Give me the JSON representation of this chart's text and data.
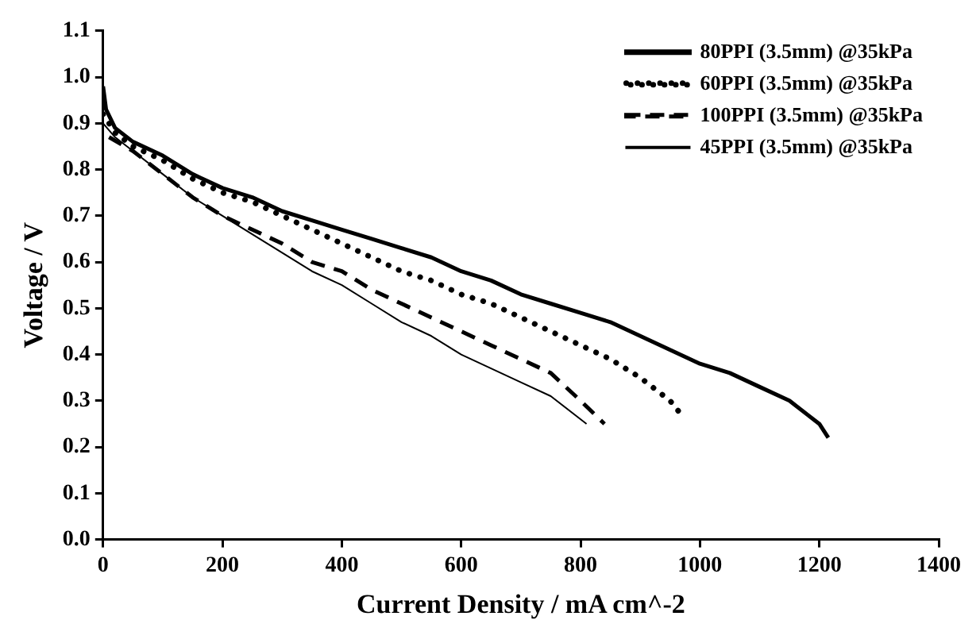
{
  "chart_data": {
    "type": "line",
    "xlabel": "Current Density / mA cm^-2",
    "ylabel": "Voltage / V",
    "xlim": [
      0,
      1400
    ],
    "xticks": [
      0,
      200,
      400,
      600,
      800,
      1000,
      1200,
      1400
    ],
    "ylim": [
      0,
      1.1
    ],
    "yticks": [
      {
        "value": 0,
        "label": "0.0"
      },
      0.1,
      0.2,
      0.3,
      0.4,
      0.5,
      0.6,
      0.7,
      0.8,
      0.9,
      {
        "value": 1,
        "label": "1.0"
      },
      1.1
    ],
    "grid": false,
    "legend": "top right",
    "marker": "none",
    "series": [
      {
        "name": "80PPI (3.5mm) @35kPa",
        "color": "#000000",
        "line_style": "solid",
        "x": [
          0,
          5,
          20,
          50,
          100,
          150,
          200,
          250,
          300,
          350,
          400,
          450,
          500,
          550,
          600,
          650,
          700,
          750,
          800,
          850,
          900,
          950,
          1000,
          1050,
          1100,
          1150,
          1200,
          1215
        ],
        "values": [
          0.98,
          0.93,
          0.89,
          0.86,
          0.83,
          0.79,
          0.76,
          0.74,
          0.71,
          0.69,
          0.67,
          0.65,
          0.63,
          0.61,
          0.58,
          0.56,
          0.53,
          0.51,
          0.49,
          0.47,
          0.44,
          0.41,
          0.38,
          0.36,
          0.33,
          0.3,
          0.25,
          0.22
        ]
      },
      {
        "name": "60PPI (3.5mm) @35kPa",
        "color": "#000000",
        "line_style": "dotted",
        "x": [
          0,
          20,
          50,
          100,
          150,
          200,
          250,
          300,
          350,
          400,
          450,
          500,
          550,
          600,
          650,
          700,
          750,
          800,
          850,
          900,
          950,
          975
        ],
        "values": [
          0.92,
          0.88,
          0.85,
          0.82,
          0.78,
          0.75,
          0.73,
          0.7,
          0.67,
          0.64,
          0.61,
          0.58,
          0.56,
          0.53,
          0.51,
          0.48,
          0.45,
          0.42,
          0.39,
          0.35,
          0.3,
          0.26
        ]
      },
      {
        "name": "100PPI (3.5mm) @35kPa",
        "color": "#000000",
        "line_style": "dashed",
        "x": [
          10,
          50,
          100,
          150,
          200,
          250,
          300,
          350,
          400,
          450,
          500,
          550,
          600,
          650,
          700,
          750,
          800,
          840
        ],
        "values": [
          0.87,
          0.84,
          0.79,
          0.74,
          0.7,
          0.67,
          0.64,
          0.6,
          0.58,
          0.54,
          0.51,
          0.48,
          0.45,
          0.42,
          0.39,
          0.36,
          0.3,
          0.25
        ]
      },
      {
        "name": "45PPI (3.5mm) @35kPa",
        "color": "#000000",
        "line_style": "solid",
        "x": [
          0,
          20,
          50,
          100,
          150,
          200,
          250,
          300,
          350,
          400,
          450,
          500,
          550,
          600,
          650,
          700,
          750,
          810
        ],
        "values": [
          0.9,
          0.87,
          0.84,
          0.79,
          0.74,
          0.7,
          0.66,
          0.62,
          0.58,
          0.55,
          0.51,
          0.47,
          0.44,
          0.4,
          0.37,
          0.34,
          0.31,
          0.25
        ]
      }
    ]
  }
}
